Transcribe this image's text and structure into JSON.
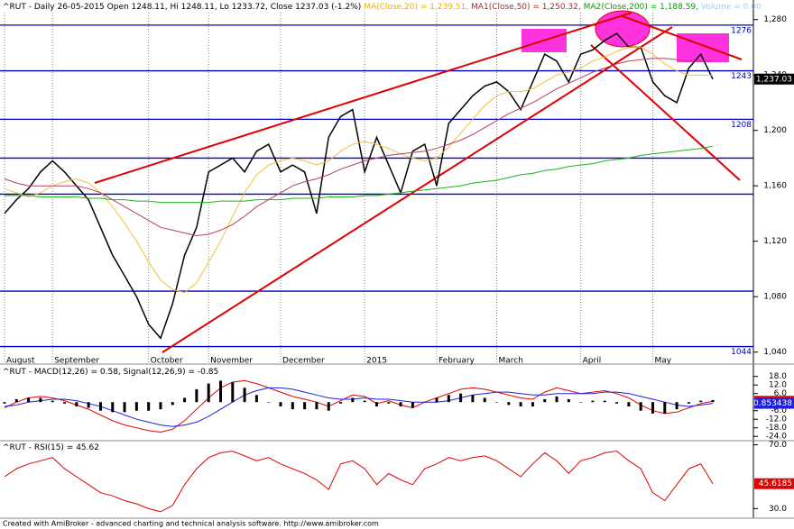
{
  "chart_data": [
    {
      "type": "line",
      "title_parts": [
        {
          "text": "^RUT - Daily 26-05-2015 Open 1248.11, Hi 1248.11, Lo 1233.72, Close 1237.03 (-1.2%)",
          "color": "#000000"
        },
        {
          "text": "MA(Close,20) = 1,239.51,",
          "color": "#e8b000"
        },
        {
          "text": "MA1(Close,50) = 1,250.32,",
          "color": "#a03030"
        },
        {
          "text": "MA2(Close,200) = 1,188.59,",
          "color": "#00a000"
        },
        {
          "text": "Volume = 0.00",
          "color": "#9ccfe8"
        }
      ],
      "categories": [
        "August",
        null,
        null,
        null,
        "September",
        null,
        null,
        null,
        null,
        null,
        null,
        null,
        "October",
        null,
        null,
        null,
        null,
        "November",
        null,
        null,
        null,
        null,
        null,
        "December",
        null,
        null,
        null,
        null,
        null,
        null,
        "2015",
        null,
        null,
        null,
        null,
        null,
        "February",
        null,
        null,
        null,
        null,
        "March",
        null,
        null,
        null,
        null,
        null,
        null,
        "April",
        null,
        null,
        null,
        null,
        null,
        "May",
        null,
        null,
        null,
        null,
        null
      ],
      "series": [
        {
          "name": "Close",
          "color": "#000000",
          "values": [
            1140,
            1150,
            1158,
            1170,
            1178,
            1170,
            1160,
            1150,
            1130,
            1110,
            1095,
            1080,
            1060,
            1050,
            1075,
            1110,
            1130,
            1170,
            1175,
            1180,
            1170,
            1185,
            1190,
            1170,
            1175,
            1170,
            1140,
            1195,
            1210,
            1215,
            1170,
            1195,
            1175,
            1155,
            1185,
            1190,
            1160,
            1205,
            1215,
            1225,
            1232,
            1235,
            1228,
            1215,
            1235,
            1255,
            1250,
            1235,
            1255,
            1258,
            1265,
            1270,
            1260,
            1260,
            1235,
            1225,
            1220,
            1245,
            1255,
            1237.03
          ],
          "value_label": "1,237.03"
        },
        {
          "name": "MA(Close,20)",
          "color": "#f0c040",
          "values": [
            1158,
            1155,
            1152,
            1155,
            1160,
            1163,
            1165,
            1162,
            1155,
            1145,
            1133,
            1120,
            1105,
            1092,
            1085,
            1083,
            1090,
            1105,
            1120,
            1138,
            1155,
            1168,
            1175,
            1178,
            1180,
            1178,
            1175,
            1178,
            1185,
            1190,
            1192,
            1190,
            1187,
            1183,
            1180,
            1178,
            1180,
            1188,
            1198,
            1208,
            1218,
            1225,
            1228,
            1228,
            1230,
            1235,
            1240,
            1242,
            1245,
            1250,
            1253,
            1257,
            1260,
            1260,
            1255,
            1248,
            1243,
            1240,
            1240,
            1239.51
          ]
        },
        {
          "name": "MA1(Close,50)",
          "color": "#b04060",
          "values": [
            1165,
            1162,
            1160,
            1160,
            1160,
            1160,
            1160,
            1158,
            1155,
            1150,
            1145,
            1140,
            1135,
            1130,
            1128,
            1126,
            1124,
            1125,
            1128,
            1132,
            1138,
            1145,
            1150,
            1155,
            1160,
            1163,
            1165,
            1168,
            1172,
            1175,
            1178,
            1180,
            1182,
            1183,
            1184,
            1185,
            1187,
            1190,
            1193,
            1197,
            1202,
            1207,
            1212,
            1216,
            1220,
            1225,
            1230,
            1234,
            1238,
            1242,
            1245,
            1248,
            1250,
            1251,
            1252,
            1252,
            1251,
            1250,
            1250,
            1250.32
          ]
        },
        {
          "name": "MA2(Close,200)",
          "color": "#20b020",
          "values": [
            1153,
            1153,
            1153,
            1152,
            1152,
            1152,
            1152,
            1151,
            1151,
            1150,
            1150,
            1149,
            1149,
            1148,
            1148,
            1148,
            1148,
            1148,
            1149,
            1149,
            1149,
            1150,
            1150,
            1150,
            1151,
            1151,
            1151,
            1152,
            1152,
            1152,
            1153,
            1153,
            1154,
            1155,
            1156,
            1157,
            1158,
            1159,
            1160,
            1162,
            1163,
            1164,
            1166,
            1168,
            1169,
            1171,
            1172,
            1174,
            1175,
            1176,
            1178,
            1179,
            1180,
            1182,
            1183,
            1184,
            1185,
            1186,
            1187,
            1188.59
          ]
        }
      ],
      "levels": [
        1276,
        1243,
        1208,
        1044
      ],
      "unlabeled_levels": [
        1180,
        1154,
        1084
      ],
      "level_color": "#0000c0",
      "ylim": [
        1032,
        1285
      ],
      "yticks": [
        {
          "value": 1040,
          "label": "1,040"
        },
        {
          "value": 1080,
          "label": "1,080"
        },
        {
          "value": 1120,
          "label": "1,120"
        },
        {
          "value": 1160,
          "label": "1,160"
        },
        {
          "value": 1200,
          "label": "1,200"
        },
        {
          "value": 1240,
          "label": "1,240"
        },
        {
          "value": 1280,
          "label": "1,280"
        }
      ]
    },
    {
      "type": "line",
      "title_parts": [
        {
          "text": "^RUT - MACD(12,26) = 0.58,",
          "color": "#000000"
        },
        {
          "text": "Signal(12,26,9) = -0.85",
          "color": "#000000"
        }
      ],
      "series": [
        {
          "name": "MACD",
          "color": "#e00000",
          "values": [
            -4,
            0,
            3,
            4,
            3,
            1,
            -2,
            -5,
            -9,
            -13,
            -16,
            -18,
            -20,
            -21,
            -19,
            -13,
            -5,
            3,
            10,
            14,
            15,
            13,
            10,
            7,
            4,
            2,
            0,
            -3,
            1,
            5,
            4,
            -1,
            1,
            -2,
            -4,
            0,
            3,
            6,
            9,
            10,
            9,
            7,
            5,
            3,
            2,
            7,
            10,
            8,
            6,
            7,
            8,
            6,
            3,
            -2,
            -6,
            -8,
            -7,
            -4,
            -1,
            0.583605
          ],
          "value_label": "0.583605"
        },
        {
          "name": "Signal",
          "color": "#2020e0",
          "values": [
            -3,
            -2,
            0,
            1,
            2,
            2,
            1,
            -1,
            -3,
            -6,
            -9,
            -12,
            -14,
            -16,
            -17,
            -16,
            -14,
            -10,
            -5,
            0,
            5,
            8,
            10,
            10,
            9,
            7,
            5,
            3,
            2,
            2,
            3,
            2,
            2,
            1,
            0,
            0,
            0,
            1,
            3,
            5,
            6,
            7,
            7,
            6,
            5,
            5,
            6,
            6,
            6,
            6,
            7,
            7,
            6,
            4,
            2,
            0,
            -2,
            -3,
            -2,
            -0.853438
          ],
          "value_label": "-0.853438"
        },
        {
          "name": "Histogram",
          "type": "bar",
          "color": "#000000",
          "values": [
            -1,
            2,
            3,
            3,
            1,
            -1,
            -3,
            -4,
            -6,
            -7,
            -7,
            -6,
            -6,
            -5,
            -2,
            3,
            9,
            13,
            15,
            14,
            10,
            5,
            0,
            -3,
            -5,
            -5,
            -5,
            -6,
            -1,
            3,
            1,
            -3,
            -1,
            -3,
            -4,
            0,
            3,
            5,
            6,
            5,
            3,
            0,
            -2,
            -3,
            -3,
            2,
            4,
            2,
            0,
            1,
            1,
            -1,
            -3,
            -6,
            -8,
            -8,
            -5,
            -1,
            1,
            1.437043
          ]
        }
      ],
      "ylim": [
        -27,
        26
      ],
      "yticks": [
        {
          "value": 18,
          "label": "18.0"
        },
        {
          "value": 12,
          "label": "12.0"
        },
        {
          "value": 6,
          "label": "6.0"
        },
        {
          "value": 0,
          "label": "0.0"
        },
        {
          "value": -6,
          "label": "-6.0"
        },
        {
          "value": -12,
          "label": "-12.0"
        },
        {
          "value": -18,
          "label": "-18.0"
        },
        {
          "value": -24,
          "label": "-24.0"
        }
      ]
    },
    {
      "type": "line",
      "title_parts": [
        {
          "text": "^RUT - RSI(15) = 45.62",
          "color": "#000000"
        }
      ],
      "series": [
        {
          "name": "RSI",
          "color": "#e00000",
          "values": [
            50,
            55,
            58,
            60,
            62,
            55,
            50,
            45,
            40,
            38,
            35,
            33,
            30,
            28,
            32,
            45,
            55,
            62,
            65,
            66,
            63,
            60,
            62,
            58,
            55,
            52,
            48,
            42,
            58,
            60,
            55,
            45,
            52,
            48,
            45,
            55,
            58,
            62,
            60,
            62,
            63,
            60,
            55,
            50,
            58,
            65,
            60,
            52,
            60,
            62,
            65,
            66,
            60,
            55,
            40,
            35,
            45,
            55,
            58,
            45.6185
          ],
          "value_label": "45.6185"
        }
      ],
      "ylim": [
        24,
        72
      ],
      "yticks": [
        {
          "value": 70,
          "label": "70.0"
        },
        {
          "value": 30,
          "label": "30.0"
        }
      ]
    }
  ],
  "footer": "Created with AmiBroker - advanced charting and technical analysis software. http://www.amibroker.com"
}
